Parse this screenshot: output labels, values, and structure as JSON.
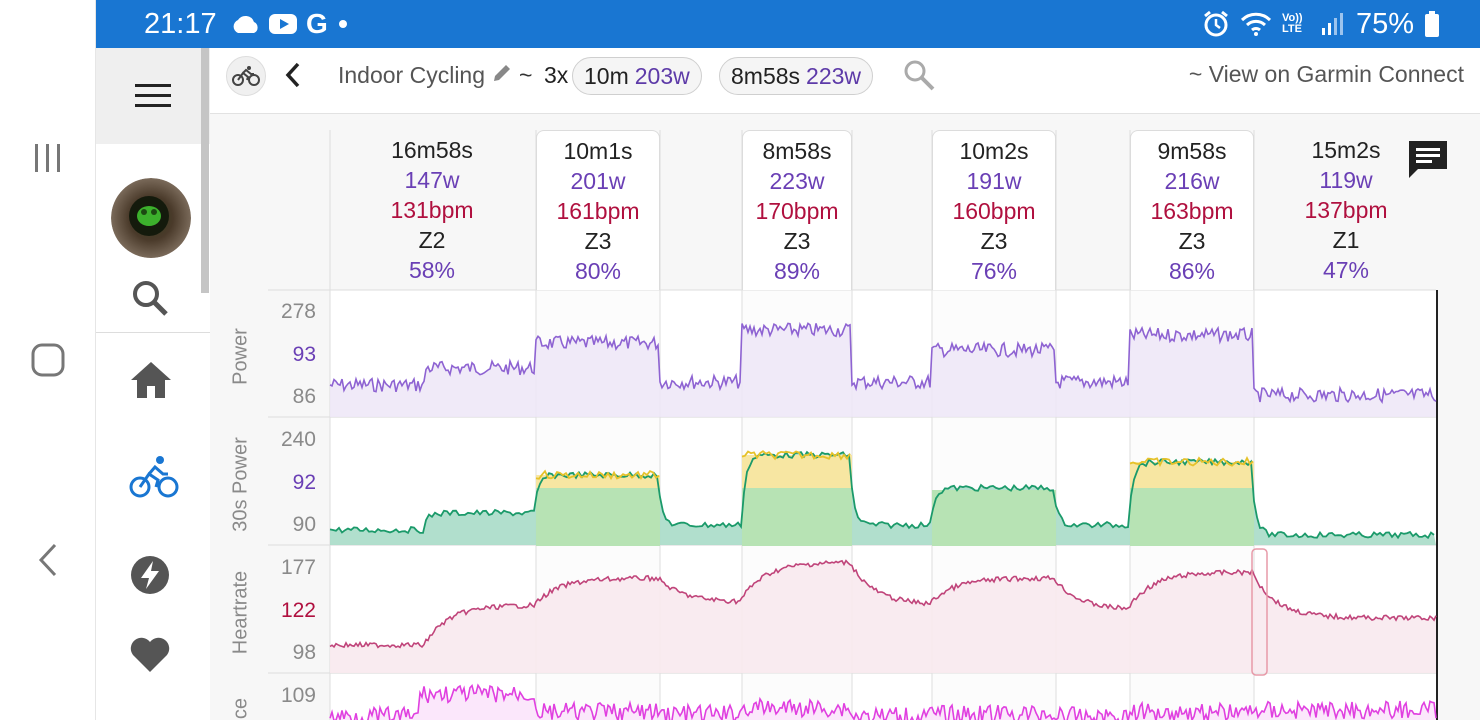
{
  "status_bar": {
    "time": "21:17",
    "battery_percent": "75%",
    "left_icons": [
      "cloud-icon",
      "youtube-icon",
      "google-icon",
      "dot-icon"
    ],
    "right_icons": [
      "alarm-icon",
      "wifi-icon",
      "volte-icon",
      "signal-icon",
      "battery-icon"
    ],
    "volte_label": "Vo)) LTE",
    "google_glyph": "G"
  },
  "android_nav": [
    "recents-icon",
    "home-icon",
    "back-icon"
  ],
  "sidebar": {
    "items": [
      "menu-icon",
      "avatar",
      "search-icon",
      "home-icon",
      "bike-icon",
      "bolt-icon",
      "heart-icon"
    ],
    "active": "bike-icon"
  },
  "header": {
    "activity_icon": "bike-icon",
    "title": "Indoor Cycling",
    "tilde": "~",
    "repeat": "3x",
    "chips": [
      {
        "duration": "10m",
        "power": "203w"
      },
      {
        "duration": "8m58s",
        "power": "223w"
      }
    ],
    "garmin_link": "~ View on Garmin Connect"
  },
  "intervals": [
    {
      "duration": "16m58s",
      "power": "147w",
      "hr": "131bpm",
      "zone": "Z2",
      "pct": "58%",
      "highlighted": false
    },
    {
      "duration": "10m1s",
      "power": "201w",
      "hr": "161bpm",
      "zone": "Z3",
      "pct": "80%",
      "highlighted": true
    },
    {
      "duration": "8m58s",
      "power": "223w",
      "hr": "170bpm",
      "zone": "Z3",
      "pct": "89%",
      "highlighted": true
    },
    {
      "duration": "10m2s",
      "power": "191w",
      "hr": "160bpm",
      "zone": "Z3",
      "pct": "76%",
      "highlighted": true
    },
    {
      "duration": "9m58s",
      "power": "216w",
      "hr": "163bpm",
      "zone": "Z3",
      "pct": "86%",
      "highlighted": true
    },
    {
      "duration": "15m2s",
      "power": "119w",
      "hr": "137bpm",
      "zone": "Z1",
      "pct": "47%",
      "highlighted": false
    }
  ],
  "chart_data": {
    "type": "line",
    "x_unit": "interval",
    "panels": [
      {
        "name": "Power",
        "ticks": [
          "278",
          "93",
          "86"
        ],
        "color": "#8e63d2",
        "segment_levels": [
          130,
          215,
          245,
          200,
          230,
          115
        ]
      },
      {
        "name": "30s Power",
        "ticks": [
          "240",
          "92",
          "90"
        ],
        "color": "#1a9a6a",
        "segment_levels": [
          120,
          195,
          225,
          190,
          215,
          105
        ]
      },
      {
        "name": "Heartrate",
        "ticks": [
          "177",
          "122",
          "98"
        ],
        "color": "#c0447a",
        "segment_levels": [
          130,
          160,
          170,
          160,
          163,
          135
        ]
      },
      {
        "name": "ce",
        "ticks": [
          "109"
        ],
        "color": "#e040e0"
      }
    ],
    "legend": "none",
    "grid": true
  }
}
